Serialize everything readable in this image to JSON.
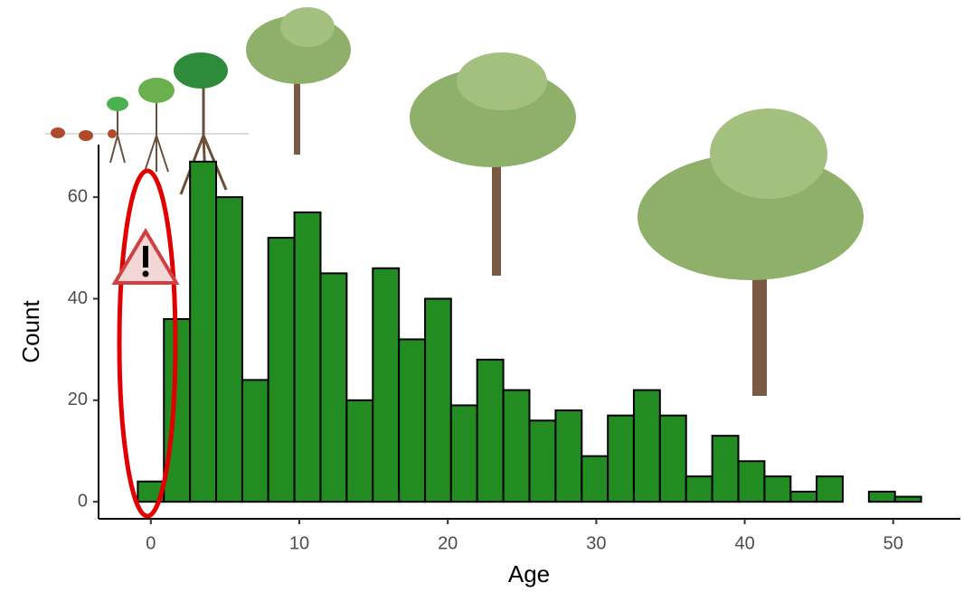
{
  "chart_data": {
    "type": "histogram",
    "x_label": "Age",
    "y_label": "Count",
    "bins": [
      -0.88,
      0.88,
      2.64,
      4.4,
      6.16,
      7.91,
      9.67,
      11.43,
      13.19,
      14.95,
      16.71,
      18.47,
      20.22,
      21.98,
      23.74,
      25.5,
      27.26,
      29.02,
      30.78,
      32.53,
      34.29,
      36.05,
      37.81,
      39.57,
      41.33,
      43.09,
      44.84,
      46.6,
      48.36,
      50.12,
      51.88
    ],
    "values": [
      4,
      36,
      67,
      60,
      24,
      52,
      57,
      45,
      20,
      46,
      32,
      40,
      19,
      28,
      22,
      16,
      18,
      9,
      17,
      22,
      17,
      5,
      13,
      8,
      5,
      2,
      5,
      0,
      2,
      1
    ],
    "color": "#228b22",
    "xlim": [
      -3.52,
      54.52
    ],
    "xticks": [
      0,
      10,
      20,
      30,
      40,
      50
    ],
    "ylim": [
      -3.35,
      70.35
    ],
    "yticks": [
      0,
      20,
      40,
      60
    ],
    "grid": false
  }
}
